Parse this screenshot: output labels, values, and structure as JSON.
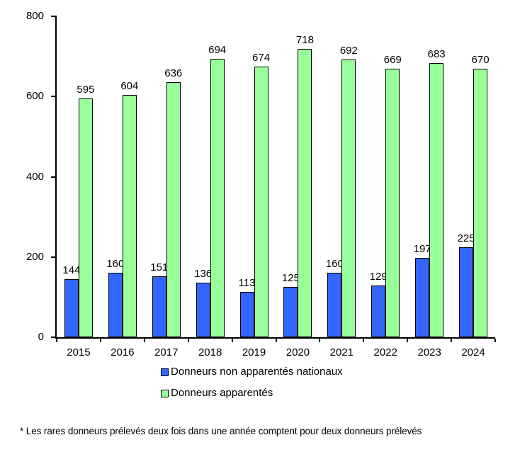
{
  "chart_data": {
    "type": "bar",
    "categories": [
      "2015",
      "2016",
      "2017",
      "2018",
      "2019",
      "2020",
      "2021",
      "2022",
      "2023",
      "2024"
    ],
    "series": [
      {
        "name": "Donneurs non apparentés nationaux",
        "color": "#3366FF",
        "values": [
          144,
          160,
          151,
          136,
          113,
          125,
          160,
          129,
          197,
          225
        ]
      },
      {
        "name": "Donneurs apparentés",
        "color": "#99FF99",
        "values": [
          595,
          604,
          636,
          694,
          674,
          718,
          692,
          669,
          683,
          670
        ]
      }
    ],
    "ylim": [
      0,
      800
    ],
    "yticks": [
      0,
      200,
      400,
      600,
      800
    ],
    "grid": false,
    "data_labels": true,
    "legend_position": "bottom",
    "axis_color": "#000000",
    "label_color": "#000000"
  },
  "footnote": "* Les rares donneurs prélevés deux fois dans une année comptent pour deux donneurs prélevés"
}
